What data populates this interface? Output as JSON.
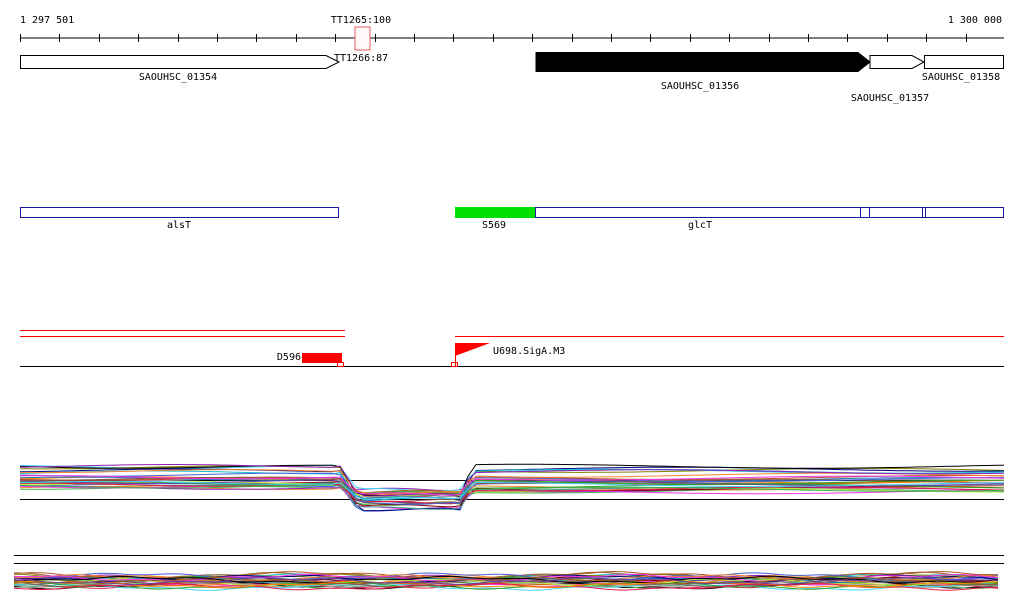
{
  "ruler": {
    "start": "1 297 501",
    "end": "1 300 000"
  },
  "terminators": [
    {
      "label": "TT1265:100"
    },
    {
      "label": "TT1266:87"
    }
  ],
  "genes": [
    {
      "label": "SAOUHSC_01354",
      "strand": "+",
      "fill": "#ffffff"
    },
    {
      "label": "SAOUHSC_01356",
      "strand": "+",
      "fill": "#000000"
    },
    {
      "label": "SAOUHSC_01357",
      "strand": "+",
      "fill": "#ffffff"
    },
    {
      "label": "SAOUHSC_01358",
      "strand": "+",
      "fill": "#ffffff"
    }
  ],
  "annotations": [
    {
      "label": "alsT",
      "color": "#1a1aa0"
    },
    {
      "label": "S569",
      "color": "#00e000"
    },
    {
      "label": "glcT",
      "color": "#1a1aa0"
    }
  ],
  "regulatory": [
    {
      "label": "D596",
      "color": "#ff0000"
    },
    {
      "label": "U698.SigA.M3",
      "color": "#ff0000"
    }
  ],
  "colors": {
    "accent": "#ff0000",
    "feature_border": "#1a1aa0"
  }
}
